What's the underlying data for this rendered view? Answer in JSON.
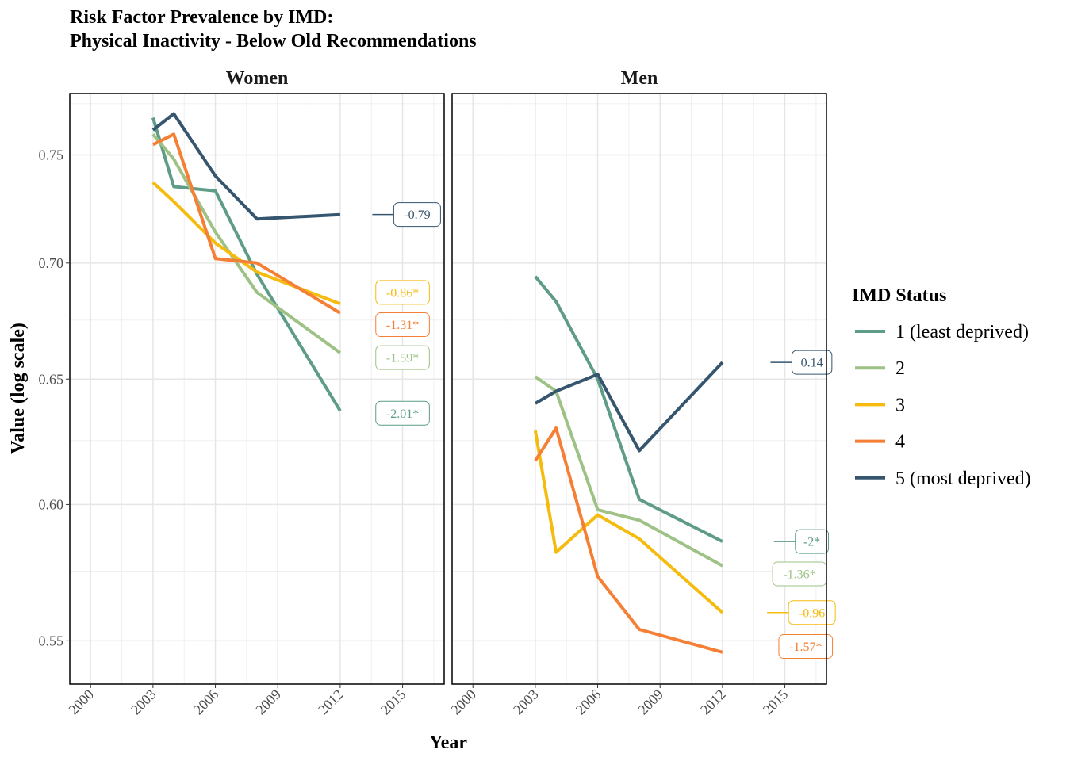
{
  "chart_data": {
    "type": "line",
    "title": [
      "Risk Factor Prevalence by IMD:",
      "Physical Inactivity - Below Old Recommendations"
    ],
    "xlabel": "Year",
    "ylabel": "Value (log scale)",
    "y_scale": "log",
    "xlim": [
      1999,
      2017
    ],
    "ylim": [
      0.535,
      0.78
    ],
    "x_ticks": [
      "2000",
      "2003",
      "2006",
      "2009",
      "2012",
      "2015"
    ],
    "y_ticks": [
      "0.55",
      "0.60",
      "0.65",
      "0.70",
      "0.75"
    ],
    "grid": true,
    "legend": {
      "title": "IMD Status",
      "position": "right",
      "entries": [
        {
          "label": "1 (least deprived)",
          "color": "#5e9c87"
        },
        {
          "label": "2",
          "color": "#9ec285"
        },
        {
          "label": "3",
          "color": "#f5bb0f"
        },
        {
          "label": "4",
          "color": "#f57f35"
        },
        {
          "label": "5 (most deprived)",
          "color": "#36566f"
        }
      ]
    },
    "panels": [
      {
        "strip": "Women",
        "series": [
          {
            "name": "1 (least deprived)",
            "color": "#5e9c87",
            "x": [
              2003,
              2004,
              2006,
              2008,
              2012
            ],
            "y": [
              0.768,
              0.735,
              0.733,
              0.695,
              0.637
            ]
          },
          {
            "name": "2",
            "color": "#9ec285",
            "x": [
              2003,
              2004,
              2006,
              2008,
              2012
            ],
            "y": [
              0.76,
              0.748,
              0.714,
              0.687,
              0.661
            ]
          },
          {
            "name": "3",
            "color": "#f5bb0f",
            "x": [
              2003,
              2004,
              2006,
              2008,
              2012
            ],
            "y": [
              0.737,
              0.728,
              0.709,
              0.696,
              0.682
            ]
          },
          {
            "name": "4",
            "color": "#f57f35",
            "x": [
              2003,
              2004,
              2006,
              2008,
              2012
            ],
            "y": [
              0.755,
              0.76,
              0.702,
              0.7,
              0.678
            ]
          },
          {
            "name": "5 (most deprived)",
            "color": "#36566f",
            "x": [
              2003,
              2004,
              2006,
              2008,
              2012
            ],
            "y": [
              0.762,
              0.77,
              0.74,
              0.72,
              0.722
            ]
          }
        ],
        "annotations": [
          {
            "label": "-0.79",
            "color": "#36566f",
            "y": 0.722,
            "x": 2015.7,
            "leader": true
          },
          {
            "label": "-0.86*",
            "color": "#f5bb0f",
            "y": 0.687,
            "x": 2015.0,
            "leader": false
          },
          {
            "label": "-1.31*",
            "color": "#f57f35",
            "y": 0.673,
            "x": 2015.0,
            "leader": false
          },
          {
            "label": "-1.59*",
            "color": "#9ec285",
            "y": 0.659,
            "x": 2015.0,
            "leader": false
          },
          {
            "label": "-2.01*",
            "color": "#5e9c87",
            "y": 0.636,
            "x": 2015.0,
            "leader": false
          }
        ]
      },
      {
        "strip": "Men",
        "series": [
          {
            "name": "1 (least deprived)",
            "color": "#5e9c87",
            "x": [
              2003,
              2004,
              2006,
              2008,
              2012
            ],
            "y": [
              0.694,
              0.683,
              0.65,
              0.602,
              0.586
            ]
          },
          {
            "name": "2",
            "color": "#9ec285",
            "x": [
              2003,
              2004,
              2006,
              2008,
              2012
            ],
            "y": [
              0.651,
              0.645,
              0.598,
              0.594,
              0.577
            ]
          },
          {
            "name": "3",
            "color": "#f5bb0f",
            "x": [
              2003,
              2004,
              2006,
              2008,
              2012
            ],
            "y": [
              0.629,
              0.582,
              0.596,
              0.587,
              0.56
            ]
          },
          {
            "name": "4",
            "color": "#f57f35",
            "x": [
              2003,
              2004,
              2006,
              2008,
              2012
            ],
            "y": [
              0.617,
              0.63,
              0.573,
              0.554,
              0.546
            ]
          },
          {
            "name": "5 (most deprived)",
            "color": "#36566f",
            "x": [
              2003,
              2004,
              2006,
              2008,
              2012
            ],
            "y": [
              0.64,
              0.645,
              0.652,
              0.621,
              0.657
            ]
          }
        ],
        "annotations": [
          {
            "label": "0.14",
            "color": "#36566f",
            "y": 0.657,
            "x": 2016.3,
            "leader": true
          },
          {
            "label": "-2*",
            "color": "#5e9c87",
            "y": 0.586,
            "x": 2016.3,
            "leader": true
          },
          {
            "label": "-1.36*",
            "color": "#9ec285",
            "y": 0.574,
            "x": 2015.7,
            "leader": false
          },
          {
            "label": "-0.96",
            "color": "#f5bb0f",
            "y": 0.56,
            "x": 2016.3,
            "leader": true
          },
          {
            "label": "-1.57*",
            "color": "#f57f35",
            "y": 0.548,
            "x": 2016.0,
            "leader": false
          }
        ]
      }
    ]
  }
}
